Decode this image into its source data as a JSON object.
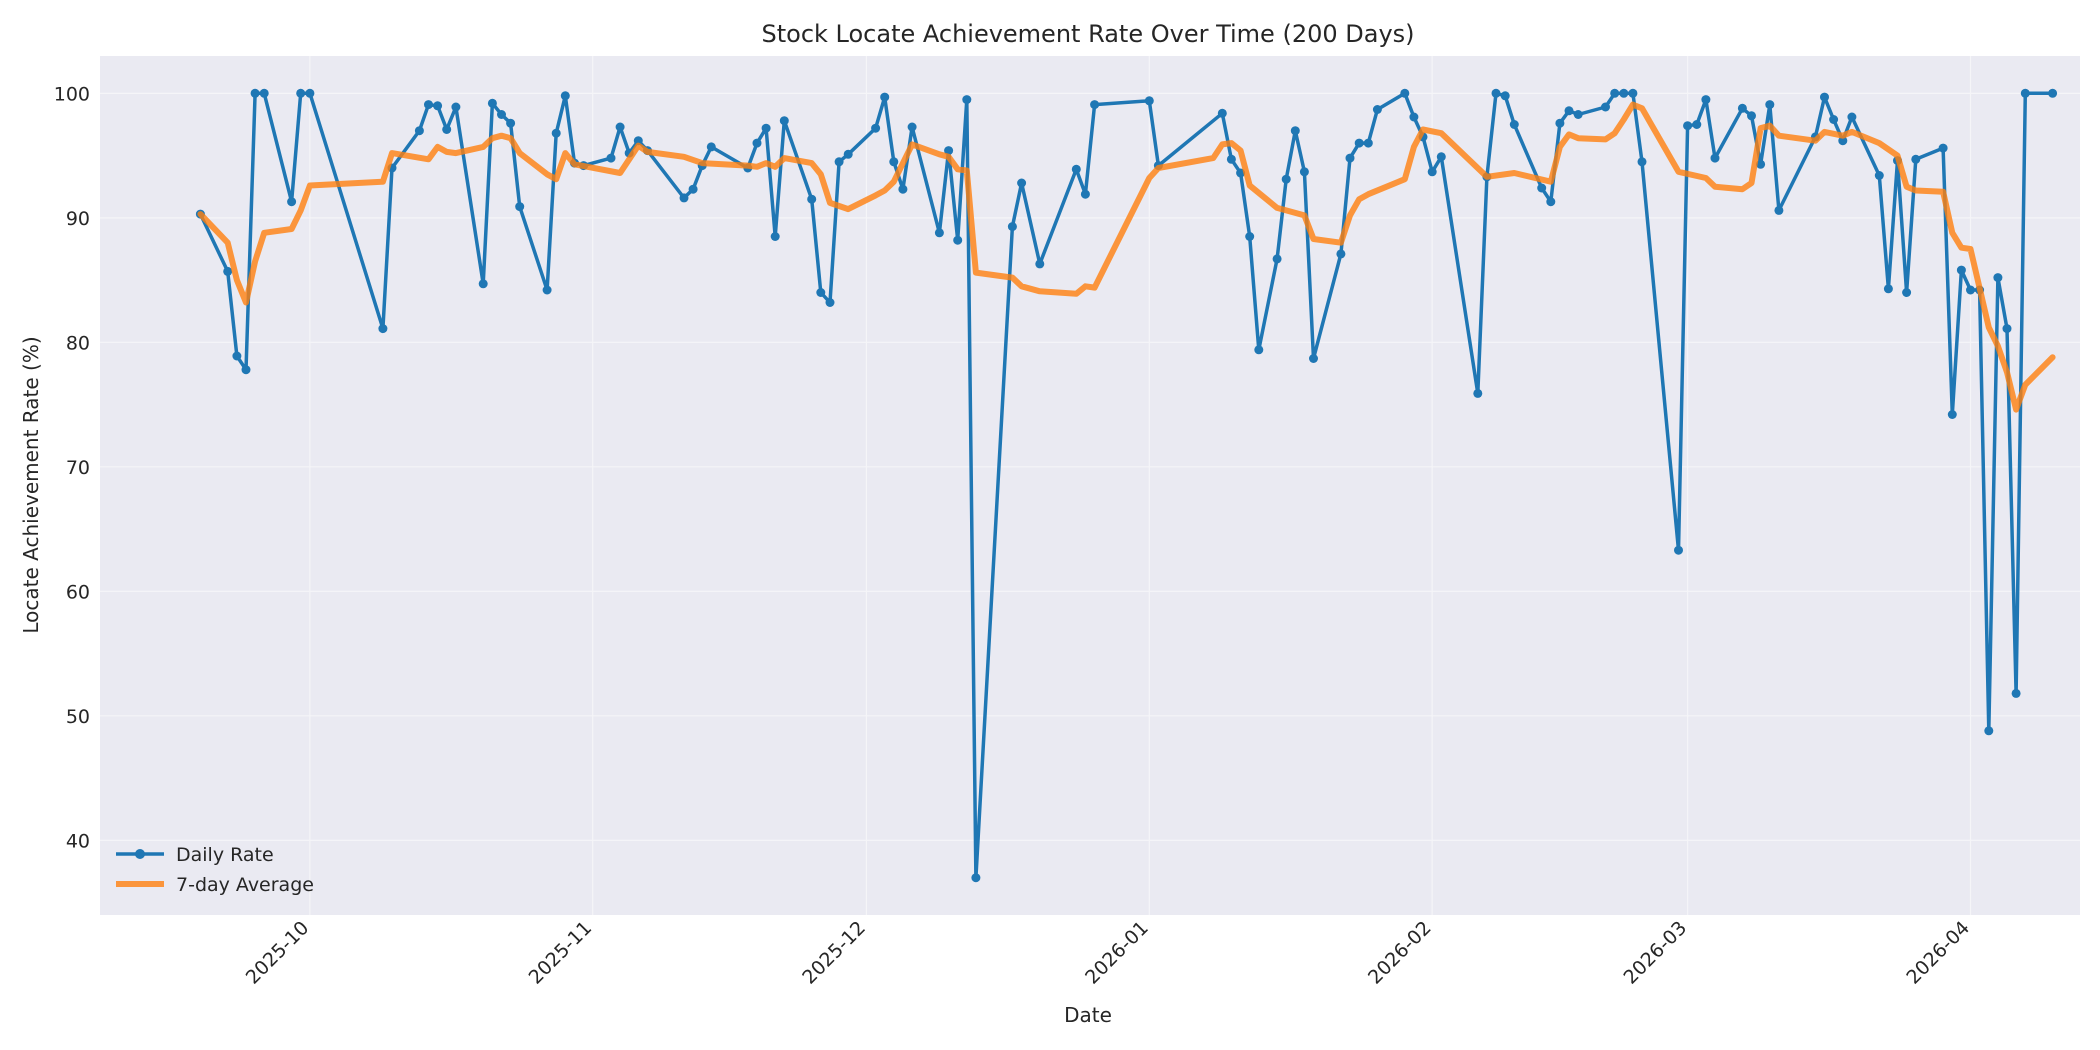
{
  "chart_data": {
    "type": "line",
    "title": "Stock Locate Achievement Rate Over Time (200 Days)",
    "xlabel": "Date",
    "ylabel": "Locate Achievement Rate (%)",
    "xlim": [
      "2025-09-08",
      "2026-04-13"
    ],
    "ylim": [
      34,
      103
    ],
    "x_ticks": [
      "2025-10-01",
      "2025-11-01",
      "2025-12-01",
      "2026-01-01",
      "2026-02-01",
      "2026-03-01",
      "2026-04-01"
    ],
    "x_tick_labels": [
      "2025-10",
      "2025-11",
      "2025-12",
      "2026-01",
      "2026-02",
      "2026-03",
      "2026-04"
    ],
    "y_ticks": [
      40,
      50,
      60,
      70,
      80,
      90,
      100
    ],
    "y_tick_labels": [
      "40",
      "50",
      "60",
      "70",
      "80",
      "90",
      "100"
    ],
    "grid": true,
    "legend_position": "lower-left",
    "colors": {
      "daily": "#1f77b4",
      "avg": "#ff7f0e",
      "plot_bg": "#eaeaf2",
      "grid": "#f5f5f8"
    },
    "series": [
      {
        "name": "Daily Rate",
        "markers": true,
        "points": [
          [
            "2025-09-19",
            90.3
          ],
          [
            "2025-09-22",
            85.7
          ],
          [
            "2025-09-23",
            78.9
          ],
          [
            "2025-09-24",
            77.8
          ],
          [
            "2025-09-25",
            100.0
          ],
          [
            "2025-09-26",
            100.0
          ],
          [
            "2025-09-29",
            91.3
          ],
          [
            "2025-09-30",
            100.0
          ],
          [
            "2025-10-01",
            100.0
          ],
          [
            "2025-10-09",
            81.1
          ],
          [
            "2025-10-10",
            94.0
          ],
          [
            "2025-10-13",
            97.0
          ],
          [
            "2025-10-14",
            99.1
          ],
          [
            "2025-10-15",
            99.0
          ],
          [
            "2025-10-16",
            97.1
          ],
          [
            "2025-10-17",
            98.9
          ],
          [
            "2025-10-20",
            84.7
          ],
          [
            "2025-10-21",
            99.2
          ],
          [
            "2025-10-22",
            98.3
          ],
          [
            "2025-10-23",
            97.6
          ],
          [
            "2025-10-24",
            90.9
          ],
          [
            "2025-10-27",
            84.2
          ],
          [
            "2025-10-28",
            96.8
          ],
          [
            "2025-10-29",
            99.8
          ],
          [
            "2025-10-30",
            94.4
          ],
          [
            "2025-10-31",
            94.2
          ],
          [
            "2025-11-03",
            94.8
          ],
          [
            "2025-11-04",
            97.3
          ],
          [
            "2025-11-05",
            95.2
          ],
          [
            "2025-11-06",
            96.2
          ],
          [
            "2025-11-07",
            95.4
          ],
          [
            "2025-11-11",
            91.6
          ],
          [
            "2025-11-12",
            92.3
          ],
          [
            "2025-11-13",
            94.2
          ],
          [
            "2025-11-14",
            95.7
          ],
          [
            "2025-11-18",
            94.0
          ],
          [
            "2025-11-19",
            96.0
          ],
          [
            "2025-11-20",
            97.2
          ],
          [
            "2025-11-21",
            88.5
          ],
          [
            "2025-11-22",
            97.8
          ],
          [
            "2025-11-25",
            91.5
          ],
          [
            "2025-11-26",
            84.0
          ],
          [
            "2025-11-27",
            83.2
          ],
          [
            "2025-11-28",
            94.5
          ],
          [
            "2025-11-29",
            95.1
          ],
          [
            "2025-12-02",
            97.2
          ],
          [
            "2025-12-03",
            99.7
          ],
          [
            "2025-12-04",
            94.5
          ],
          [
            "2025-12-05",
            92.3
          ],
          [
            "2025-12-06",
            97.3
          ],
          [
            "2025-12-09",
            88.8
          ],
          [
            "2025-12-10",
            95.4
          ],
          [
            "2025-12-11",
            88.2
          ],
          [
            "2025-12-12",
            99.5
          ],
          [
            "2025-12-13",
            37.0
          ],
          [
            "2025-12-17",
            89.3
          ],
          [
            "2025-12-18",
            92.8
          ],
          [
            "2025-12-20",
            86.3
          ],
          [
            "2025-12-24",
            93.9
          ],
          [
            "2025-12-25",
            91.9
          ],
          [
            "2025-12-26",
            99.1
          ],
          [
            "2026-01-01",
            99.4
          ],
          [
            "2026-01-02",
            94.2
          ],
          [
            "2026-01-09",
            98.4
          ],
          [
            "2026-01-10",
            94.7
          ],
          [
            "2026-01-11",
            93.6
          ],
          [
            "2026-01-12",
            88.5
          ],
          [
            "2026-01-13",
            79.4
          ],
          [
            "2026-01-15",
            86.7
          ],
          [
            "2026-01-16",
            93.1
          ],
          [
            "2026-01-17",
            97.0
          ],
          [
            "2026-01-18",
            93.7
          ],
          [
            "2026-01-19",
            78.7
          ],
          [
            "2026-01-22",
            87.1
          ],
          [
            "2026-01-23",
            94.8
          ],
          [
            "2026-01-24",
            96.0
          ],
          [
            "2026-01-25",
            96.0
          ],
          [
            "2026-01-26",
            98.7
          ],
          [
            "2026-01-29",
            100.0
          ],
          [
            "2026-01-30",
            98.1
          ],
          [
            "2026-01-31",
            96.5
          ],
          [
            "2026-02-01",
            93.7
          ],
          [
            "2026-02-02",
            94.9
          ],
          [
            "2026-02-06",
            75.9
          ],
          [
            "2026-02-07",
            93.3
          ],
          [
            "2026-02-08",
            100.0
          ],
          [
            "2026-02-09",
            99.8
          ],
          [
            "2026-02-10",
            97.5
          ],
          [
            "2026-02-13",
            92.4
          ],
          [
            "2026-02-14",
            91.3
          ],
          [
            "2026-02-15",
            97.6
          ],
          [
            "2026-02-16",
            98.6
          ],
          [
            "2026-02-17",
            98.3
          ],
          [
            "2026-02-20",
            98.9
          ],
          [
            "2026-02-21",
            100.0
          ],
          [
            "2026-02-22",
            100.0
          ],
          [
            "2026-02-23",
            100.0
          ],
          [
            "2026-02-24",
            94.5
          ],
          [
            "2026-02-28",
            63.3
          ],
          [
            "2026-03-01",
            97.4
          ],
          [
            "2026-03-02",
            97.5
          ],
          [
            "2026-03-03",
            99.5
          ],
          [
            "2026-03-04",
            94.8
          ],
          [
            "2026-03-07",
            98.8
          ],
          [
            "2026-03-08",
            98.2
          ],
          [
            "2026-03-09",
            94.3
          ],
          [
            "2026-03-10",
            99.1
          ],
          [
            "2026-03-11",
            90.6
          ],
          [
            "2026-03-15",
            96.5
          ],
          [
            "2026-03-16",
            99.7
          ],
          [
            "2026-03-17",
            97.9
          ],
          [
            "2026-03-18",
            96.2
          ],
          [
            "2026-03-19",
            98.1
          ],
          [
            "2026-03-22",
            93.4
          ],
          [
            "2026-03-23",
            84.3
          ],
          [
            "2026-03-24",
            94.6
          ],
          [
            "2026-03-25",
            84.0
          ],
          [
            "2026-03-26",
            94.7
          ],
          [
            "2026-03-29",
            95.6
          ],
          [
            "2026-03-30",
            74.2
          ],
          [
            "2026-03-31",
            85.8
          ],
          [
            "2026-04-01",
            84.2
          ],
          [
            "2026-04-02",
            84.2
          ],
          [
            "2026-04-03",
            48.8
          ],
          [
            "2026-04-04",
            85.2
          ],
          [
            "2026-04-05",
            81.1
          ],
          [
            "2026-04-06",
            51.8
          ],
          [
            "2026-04-07",
            100.0
          ],
          [
            "2026-04-10",
            100.0
          ]
        ]
      },
      {
        "name": "7-day Average",
        "markers": false,
        "points": [
          [
            "2025-09-19",
            90.3
          ],
          [
            "2025-09-22",
            88.0
          ],
          [
            "2025-09-23",
            85.0
          ],
          [
            "2025-09-24",
            83.2
          ],
          [
            "2025-09-25",
            86.5
          ],
          [
            "2025-09-26",
            88.8
          ],
          [
            "2025-09-29",
            89.1
          ],
          [
            "2025-09-30",
            90.6
          ],
          [
            "2025-10-01",
            92.6
          ],
          [
            "2025-10-09",
            92.9
          ],
          [
            "2025-10-10",
            95.2
          ],
          [
            "2025-10-14",
            94.7
          ],
          [
            "2025-10-15",
            95.7
          ],
          [
            "2025-10-16",
            95.3
          ],
          [
            "2025-10-17",
            95.2
          ],
          [
            "2025-10-20",
            95.7
          ],
          [
            "2025-10-21",
            96.4
          ],
          [
            "2025-10-22",
            96.6
          ],
          [
            "2025-10-23",
            96.4
          ],
          [
            "2025-10-24",
            95.2
          ],
          [
            "2025-10-27",
            93.5
          ],
          [
            "2025-10-28",
            93.1
          ],
          [
            "2025-10-29",
            95.2
          ],
          [
            "2025-10-30",
            94.3
          ],
          [
            "2025-11-04",
            93.6
          ],
          [
            "2025-11-05",
            94.7
          ],
          [
            "2025-11-06",
            95.8
          ],
          [
            "2025-11-07",
            95.3
          ],
          [
            "2025-11-11",
            94.9
          ],
          [
            "2025-11-13",
            94.4
          ],
          [
            "2025-11-18",
            94.2
          ],
          [
            "2025-11-19",
            94.1
          ],
          [
            "2025-11-20",
            94.4
          ],
          [
            "2025-11-21",
            94.1
          ],
          [
            "2025-11-22",
            94.8
          ],
          [
            "2025-11-25",
            94.4
          ],
          [
            "2025-11-26",
            93.5
          ],
          [
            "2025-11-27",
            91.2
          ],
          [
            "2025-11-29",
            90.7
          ],
          [
            "2025-12-02",
            91.8
          ],
          [
            "2025-12-03",
            92.2
          ],
          [
            "2025-12-04",
            92.9
          ],
          [
            "2025-12-06",
            95.9
          ],
          [
            "2025-12-09",
            95.1
          ],
          [
            "2025-12-10",
            94.9
          ],
          [
            "2025-12-11",
            93.9
          ],
          [
            "2025-12-12",
            93.8
          ],
          [
            "2025-12-13",
            85.6
          ],
          [
            "2025-12-17",
            85.2
          ],
          [
            "2025-12-18",
            84.5
          ],
          [
            "2025-12-20",
            84.1
          ],
          [
            "2025-12-24",
            83.9
          ],
          [
            "2025-12-25",
            84.5
          ],
          [
            "2025-12-26",
            84.4
          ],
          [
            "2026-01-01",
            93.2
          ],
          [
            "2026-01-02",
            94.0
          ],
          [
            "2026-01-08",
            94.8
          ],
          [
            "2026-01-09",
            95.9
          ],
          [
            "2026-01-10",
            96.0
          ],
          [
            "2026-01-11",
            95.4
          ],
          [
            "2026-01-12",
            92.6
          ],
          [
            "2026-01-15",
            90.8
          ],
          [
            "2026-01-18",
            90.2
          ],
          [
            "2026-01-19",
            88.3
          ],
          [
            "2026-01-22",
            88.0
          ],
          [
            "2026-01-23",
            90.2
          ],
          [
            "2026-01-24",
            91.5
          ],
          [
            "2026-01-25",
            91.9
          ],
          [
            "2026-01-29",
            93.1
          ],
          [
            "2026-01-30",
            95.7
          ],
          [
            "2026-01-31",
            97.1
          ],
          [
            "2026-02-02",
            96.8
          ],
          [
            "2026-02-07",
            93.3
          ],
          [
            "2026-02-10",
            93.6
          ],
          [
            "2026-02-14",
            92.9
          ],
          [
            "2026-02-15",
            95.7
          ],
          [
            "2026-02-16",
            96.7
          ],
          [
            "2026-02-17",
            96.4
          ],
          [
            "2026-02-20",
            96.3
          ],
          [
            "2026-02-21",
            96.8
          ],
          [
            "2026-02-22",
            97.9
          ],
          [
            "2026-02-23",
            99.1
          ],
          [
            "2026-02-24",
            98.8
          ],
          [
            "2026-02-28",
            93.7
          ],
          [
            "2026-03-03",
            93.2
          ],
          [
            "2026-03-04",
            92.5
          ],
          [
            "2026-03-07",
            92.3
          ],
          [
            "2026-03-08",
            92.8
          ],
          [
            "2026-03-09",
            97.2
          ],
          [
            "2026-03-10",
            97.4
          ],
          [
            "2026-03-11",
            96.6
          ],
          [
            "2026-03-15",
            96.2
          ],
          [
            "2026-03-16",
            96.9
          ],
          [
            "2026-03-18",
            96.6
          ],
          [
            "2026-03-19",
            96.9
          ],
          [
            "2026-03-22",
            96.0
          ],
          [
            "2026-03-23",
            95.5
          ],
          [
            "2026-03-24",
            95.0
          ],
          [
            "2026-03-25",
            92.5
          ],
          [
            "2026-03-26",
            92.2
          ],
          [
            "2026-03-29",
            92.1
          ],
          [
            "2026-03-30",
            88.8
          ],
          [
            "2026-03-31",
            87.6
          ],
          [
            "2026-04-01",
            87.5
          ],
          [
            "2026-04-03",
            81.2
          ],
          [
            "2026-04-04",
            79.7
          ],
          [
            "2026-04-05",
            77.6
          ],
          [
            "2026-04-06",
            74.6
          ],
          [
            "2026-04-07",
            76.6
          ],
          [
            "2026-04-10",
            78.8
          ]
        ]
      }
    ]
  }
}
